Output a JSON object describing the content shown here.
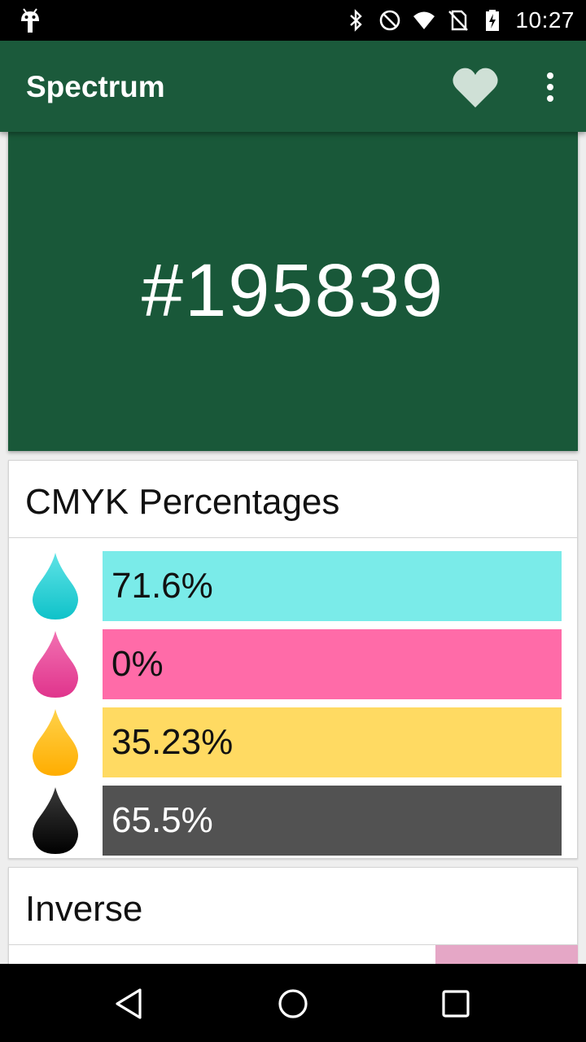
{
  "status_bar": {
    "time": "10:27",
    "icons": [
      "android-icon",
      "bluetooth-icon",
      "do-not-disturb-icon",
      "wifi-icon",
      "no-sim-icon",
      "battery-charging-icon"
    ]
  },
  "app_bar": {
    "title": "Spectrum",
    "favorite_icon": "heart-icon",
    "menu_icon": "more-vert-icon",
    "background": "#1b5a3b"
  },
  "color_display": {
    "hex": "#195839",
    "color": "#195839"
  },
  "cmyk": {
    "title": "CMYK Percentages",
    "rows": [
      {
        "channel": "cyan",
        "value": "71.6%",
        "fraction": 0.716,
        "bar_color": "#7aebe9",
        "drop_color": "#12c8cf",
        "text_color": "#111111"
      },
      {
        "channel": "magenta",
        "value": "0%",
        "fraction": 0.0,
        "bar_color": "#ff6ba8",
        "drop_color": "#e93c93",
        "text_color": "#111111"
      },
      {
        "channel": "yellow",
        "value": "35.23%",
        "fraction": 0.3523,
        "bar_color": "#ffda62",
        "drop_color": "#ffb300",
        "text_color": "#111111"
      },
      {
        "channel": "key",
        "value": "65.5%",
        "fraction": 0.655,
        "bar_color": "#525252",
        "drop_color": "#111111",
        "text_color": "#ffffff"
      }
    ]
  },
  "inverse": {
    "title": "Inverse",
    "swatch_color": "#e6a7c6"
  },
  "nav_bar": {
    "back_icon": "back-triangle-icon",
    "home_icon": "home-circle-icon",
    "recents_icon": "recents-square-icon"
  }
}
